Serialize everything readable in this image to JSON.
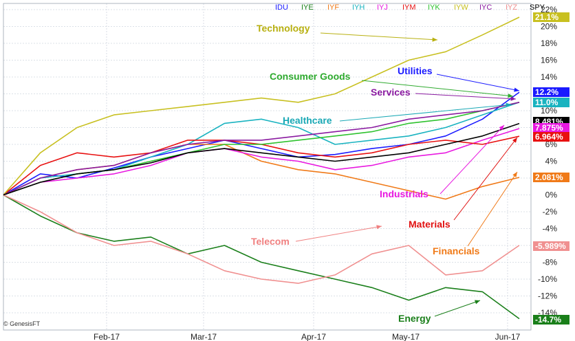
{
  "chart_data": {
    "type": "line",
    "copyright": "© GenesisFT",
    "x_tick_labels": [
      "Feb-17",
      "Mar-17",
      "Apr-17",
      "May-17",
      "Jun-17"
    ],
    "y_tick_labels": [
      "22%",
      "20%",
      "18%",
      "16%",
      "14%",
      "12%",
      "10%",
      "8%",
      "6%",
      "4%",
      "2%",
      "0%",
      "-2%",
      "-4%",
      "-6%",
      "-8%",
      "-10%",
      "-12%",
      "-14%"
    ],
    "ylim": [
      -15.5,
      22.5
    ],
    "grid": true,
    "legend_placement": "top-right",
    "legend": [
      {
        "label": "IDU",
        "color": "#1a1aff"
      },
      {
        "label": "IYE",
        "color": "#1a7f1a"
      },
      {
        "label": "IYF",
        "color": "#f07a18"
      },
      {
        "label": "IYH",
        "color": "#19b3c0"
      },
      {
        "label": "IYJ",
        "color": "#e818e0"
      },
      {
        "label": "IYM",
        "color": "#e81010"
      },
      {
        "label": "IYK",
        "color": "#2ec22e"
      },
      {
        "label": "IYW",
        "color": "#c8c020"
      },
      {
        "label": "IYC",
        "color": "#8a1aa0"
      },
      {
        "label": "IYZ",
        "color": "#f09090"
      },
      {
        "label": "SPY",
        "color": "#000000"
      }
    ],
    "series": [
      {
        "name": "IDU",
        "color": "#1a1aff",
        "annotation": "Utilities",
        "values": [
          0,
          2.5,
          2,
          3.2,
          4.5,
          5.5,
          6.5,
          5.5,
          4.5,
          4.8,
          5.5,
          6,
          7,
          9,
          12.2
        ]
      },
      {
        "name": "IYE",
        "color": "#1a7f1a",
        "annotation": "Energy",
        "values": [
          0,
          -2.5,
          -4.5,
          -5.5,
          -5,
          -7,
          -6,
          -8,
          -9,
          -10,
          -11,
          -12.5,
          -11,
          -11.5,
          -14.7
        ]
      },
      {
        "name": "IYF",
        "color": "#f07a18",
        "annotation": "Financials",
        "values": [
          0,
          2,
          3,
          3.5,
          5,
          6,
          6,
          4,
          3,
          2.5,
          1.5,
          0.5,
          -0.5,
          1,
          2.081
        ]
      },
      {
        "name": "IYH",
        "color": "#19b3c0",
        "annotation": "Healthcare",
        "values": [
          0,
          2,
          2.5,
          3,
          4.5,
          6,
          8.5,
          9,
          8,
          6,
          6.5,
          7,
          8,
          9.5,
          11.0
        ]
      },
      {
        "name": "IYJ",
        "color": "#e818e0",
        "annotation": "Industrials",
        "values": [
          0,
          1.5,
          2,
          2.5,
          3.5,
          5,
          5.5,
          4.5,
          4,
          3,
          3.5,
          4.5,
          5,
          6.5,
          7.875
        ]
      },
      {
        "name": "IYM",
        "color": "#e81010",
        "annotation": "Materials",
        "values": [
          0,
          3.5,
          5,
          4.5,
          5,
          6.5,
          6.5,
          6,
          5,
          4.5,
          5,
          6,
          6.5,
          6,
          6.964
        ]
      },
      {
        "name": "IYK",
        "color": "#2ec22e",
        "annotation": "Consumer Goods",
        "values": [
          0,
          1.5,
          2.5,
          3,
          4,
          5,
          6,
          6,
          6.5,
          7,
          7.5,
          8.5,
          9,
          10,
          11.0
        ]
      },
      {
        "name": "IYW",
        "color": "#c8c020",
        "annotation": "Technology",
        "values": [
          0,
          5,
          8,
          9.5,
          10,
          10.5,
          11,
          11.5,
          11,
          12,
          14,
          16,
          17,
          19,
          21.1
        ]
      },
      {
        "name": "IYC",
        "color": "#8a1aa0",
        "annotation": "Services",
        "values": [
          0,
          2,
          3,
          3.5,
          5,
          6,
          6.5,
          6.5,
          7,
          7.5,
          8,
          9,
          9.5,
          10,
          11.0
        ]
      },
      {
        "name": "IYZ",
        "color": "#f09090",
        "annotation": "Telecom",
        "values": [
          0,
          -2,
          -4.5,
          -6,
          -5.5,
          -7,
          -9,
          -10,
          -10.5,
          -9.5,
          -7,
          -6,
          -9.5,
          -9,
          -5.989
        ]
      },
      {
        "name": "SPY",
        "color": "#000000",
        "annotation": "",
        "values": [
          0,
          1.5,
          2.5,
          3,
          3.8,
          5,
          5.5,
          5,
          4.5,
          4,
          4.5,
          5,
          6,
          7,
          8.481
        ]
      }
    ],
    "end_labels": [
      {
        "text": "21.1%",
        "value": 21.1,
        "bg": "#c8c020"
      },
      {
        "text": "12.2%",
        "value": 12.2,
        "bg": "#1a1aff"
      },
      {
        "text": "11.0%",
        "value": 11.0,
        "bg": "#19b3c0"
      },
      {
        "text": "8.481%",
        "value": 8.481,
        "bg": "#000000"
      },
      {
        "text": "7.875%",
        "value": 7.875,
        "bg": "#e818e0"
      },
      {
        "text": "6.964%",
        "value": 6.964,
        "bg": "#e81010"
      },
      {
        "text": "2.081%",
        "value": 2.081,
        "bg": "#f07a18"
      },
      {
        "text": "-5.989%",
        "value": -5.989,
        "bg": "#f09090"
      },
      {
        "text": "-14.7%",
        "value": -14.7,
        "bg": "#1a7f1a"
      }
    ],
    "annotations": [
      {
        "text": "Technology",
        "color": "#b8b010"
      },
      {
        "text": "Consumer Goods",
        "color": "#2eaa2e"
      },
      {
        "text": "Utilities",
        "color": "#1a1aff"
      },
      {
        "text": "Services",
        "color": "#8a1aa0"
      },
      {
        "text": "Healthcare",
        "color": "#19a8b5"
      },
      {
        "text": "Industrials",
        "color": "#e818e0"
      },
      {
        "text": "Materials",
        "color": "#e01010"
      },
      {
        "text": "Telecom",
        "color": "#f08080"
      },
      {
        "text": "Financials",
        "color": "#f07a18"
      },
      {
        "text": "Energy",
        "color": "#1a7f1a"
      }
    ]
  }
}
